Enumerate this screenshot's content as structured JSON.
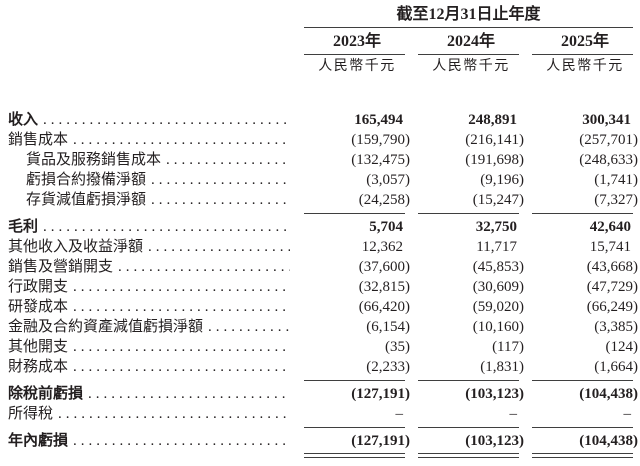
{
  "header": {
    "period_title": "截至12月31日止年度",
    "years": [
      "2023年",
      "2024年",
      "2025年"
    ],
    "units": [
      "人民幣千元",
      "人民幣千元",
      "人民幣千元"
    ]
  },
  "table": {
    "rows": [
      {
        "label": "收入",
        "values": [
          "165,494",
          "248,891",
          "300,341"
        ]
      },
      {
        "label": "銷售成本",
        "values": [
          "(159,790)",
          "(216,141)",
          "(257,701)"
        ]
      },
      {
        "label": "貨品及服務銷售成本",
        "values": [
          "(132,475)",
          "(191,698)",
          "(248,633)"
        ]
      },
      {
        "label": "虧損合約撥備淨額",
        "values": [
          "(3,057)",
          "(9,196)",
          "(1,741)"
        ]
      },
      {
        "label": "存貨減值虧損淨額",
        "values": [
          "(24,258)",
          "(15,247)",
          "(7,327)"
        ]
      },
      {
        "label": "毛利",
        "values": [
          "5,704",
          "32,750",
          "42,640"
        ]
      },
      {
        "label": "其他收入及收益淨額",
        "values": [
          "12,362",
          "11,717",
          "15,741"
        ]
      },
      {
        "label": "銷售及營銷開支",
        "values": [
          "(37,600)",
          "(45,853)",
          "(43,668)"
        ]
      },
      {
        "label": "行政開支",
        "values": [
          "(32,815)",
          "(30,609)",
          "(47,729)"
        ]
      },
      {
        "label": "研發成本",
        "values": [
          "(66,420)",
          "(59,020)",
          "(66,249)"
        ]
      },
      {
        "label": "金融及合約資產減值虧損淨額",
        "values": [
          "(6,154)",
          "(10,160)",
          "(3,385)"
        ]
      },
      {
        "label": "其他開支",
        "values": [
          "(35)",
          "(117)",
          "(124)"
        ]
      },
      {
        "label": "財務成本",
        "values": [
          "(2,233)",
          "(1,831)",
          "(1,664)"
        ]
      },
      {
        "label": "除稅前虧損",
        "values": [
          "(127,191)",
          "(103,123)",
          "(104,438)"
        ]
      },
      {
        "label": "所得稅",
        "values": [
          "–",
          "–",
          "–"
        ]
      },
      {
        "label": "年內虧損",
        "values": [
          "(127,191)",
          "(103,123)",
          "(104,438)"
        ]
      }
    ]
  },
  "colors": {
    "text": "#231f20",
    "rule": "#3f3f3f"
  }
}
